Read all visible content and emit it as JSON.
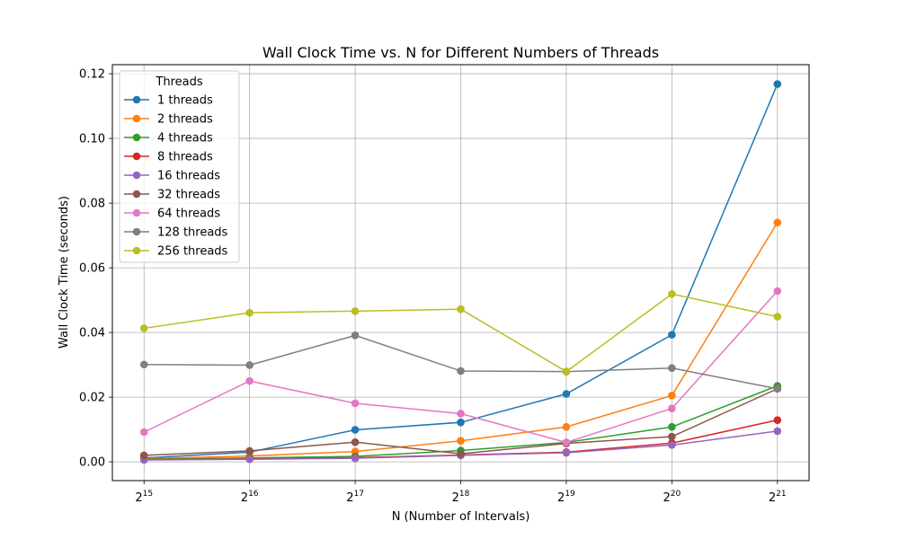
{
  "chart_data": {
    "type": "line",
    "title": "Wall Clock Time vs. N for Different Numbers of Threads",
    "xlabel": "N (Number of Intervals)",
    "ylabel": "Wall Clock Time (seconds)",
    "x_base": "2",
    "x_exponents": [
      "15",
      "16",
      "17",
      "18",
      "19",
      "20",
      "21"
    ],
    "x": [
      32768,
      65536,
      131072,
      262144,
      524288,
      1048576,
      2097152
    ],
    "x_scale": "log2",
    "ylim": [
      -0.0058,
      0.1228
    ],
    "yticks": [
      0.0,
      0.02,
      0.04,
      0.06,
      0.08,
      0.1,
      0.12
    ],
    "ytick_labels": [
      "0.00",
      "0.02",
      "0.04",
      "0.06",
      "0.08",
      "0.10",
      "0.12"
    ],
    "grid": true,
    "legend": {
      "title": "Threads",
      "position": "top-left"
    },
    "series": [
      {
        "name": "1 threads",
        "color": "#1f77b4",
        "values": [
          0.0012,
          0.003,
          0.0099,
          0.0122,
          0.021,
          0.0393,
          0.1168
        ]
      },
      {
        "name": "2 threads",
        "color": "#ff7f0e",
        "values": [
          0.001,
          0.0018,
          0.0032,
          0.0065,
          0.0108,
          0.0205,
          0.074
        ]
      },
      {
        "name": "4 threads",
        "color": "#2ca02c",
        "values": [
          0.0008,
          0.0012,
          0.0017,
          0.0035,
          0.006,
          0.0108,
          0.0235
        ]
      },
      {
        "name": "8 threads",
        "color": "#d62728",
        "values": [
          0.0007,
          0.0009,
          0.0013,
          0.0021,
          0.003,
          0.0058,
          0.0129
        ]
      },
      {
        "name": "16 threads",
        "color": "#9467bd",
        "values": [
          0.0006,
          0.0008,
          0.0011,
          0.002,
          0.0028,
          0.0052,
          0.0095
        ]
      },
      {
        "name": "32 threads",
        "color": "#8c564b",
        "values": [
          0.002,
          0.0034,
          0.0061,
          0.0025,
          0.0057,
          0.0078,
          0.0226
        ]
      },
      {
        "name": "64 threads",
        "color": "#e377c2",
        "values": [
          0.0092,
          0.025,
          0.0181,
          0.0149,
          0.006,
          0.0165,
          0.0528
        ]
      },
      {
        "name": "128 threads",
        "color": "#7f7f7f",
        "values": [
          0.0301,
          0.0299,
          0.0391,
          0.0281,
          0.0279,
          0.029,
          0.0226
        ]
      },
      {
        "name": "256 threads",
        "color": "#bcbd22",
        "values": [
          0.0413,
          0.0461,
          0.0466,
          0.0472,
          0.0279,
          0.0519,
          0.0449
        ]
      }
    ]
  }
}
